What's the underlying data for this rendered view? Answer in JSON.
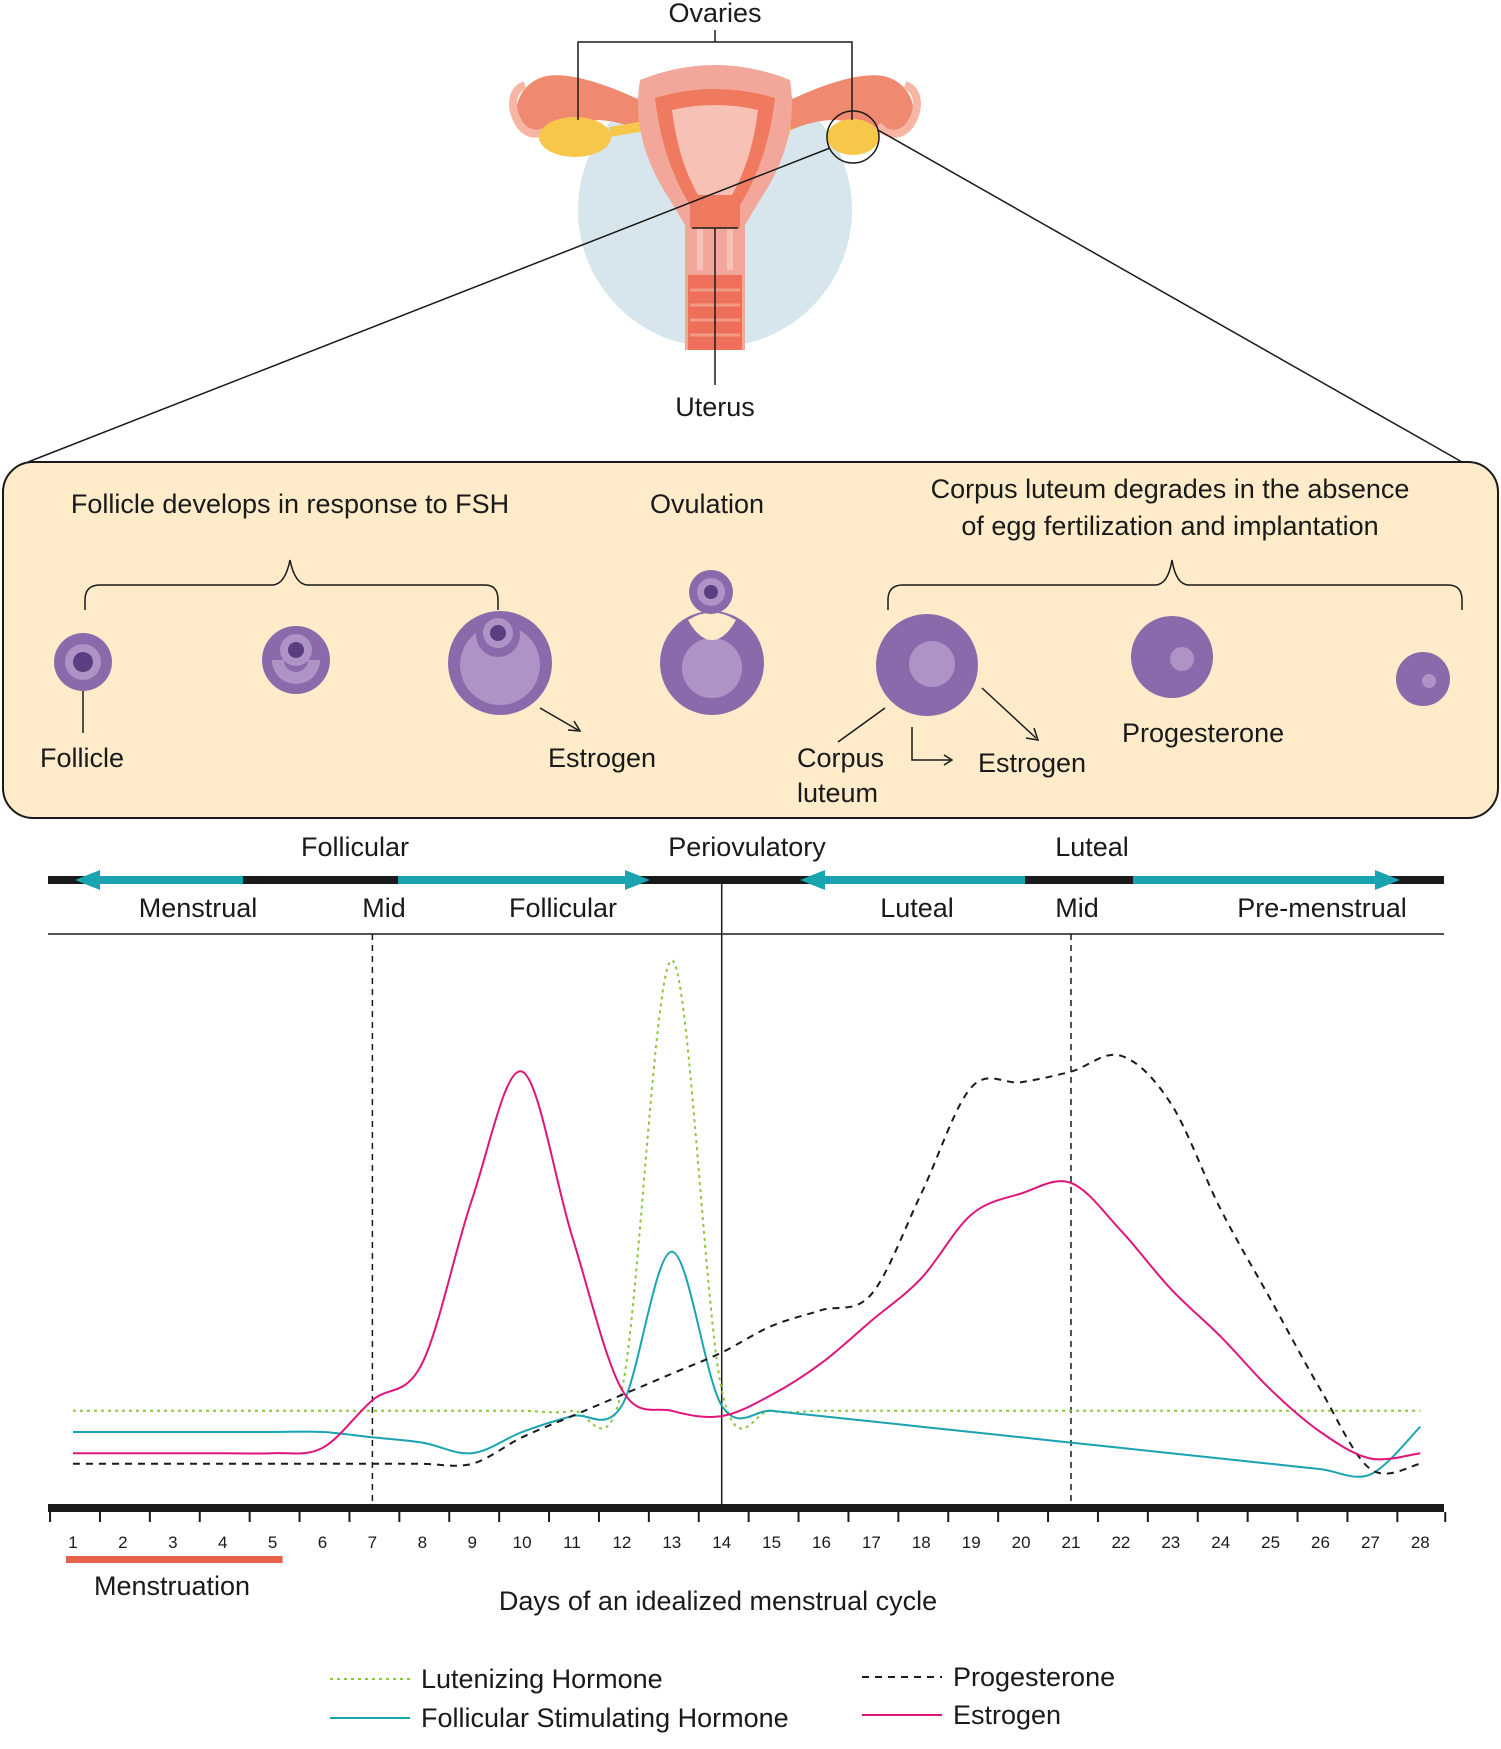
{
  "anatomy": {
    "ovaries_label": "Ovaries",
    "uterus_label": "Uterus"
  },
  "ovary_panel": {
    "follicle_heading": "Follicle develops in response to FSH",
    "ovulation_heading": "Ovulation",
    "corpus_heading_line1": "Corpus luteum degrades in the absence",
    "corpus_heading_line2": "of egg fertilization and implantation",
    "follicle_label": "Follicle",
    "estrogen_label_1": "Estrogen",
    "corpus_label_line1": "Corpus",
    "corpus_label_line2": "luteum",
    "estrogen_label_2": "Estrogen",
    "progesterone_label": "Progesterone"
  },
  "phases": {
    "top": [
      "Follicular",
      "Periovulatory",
      "Luteal"
    ],
    "sub": [
      "Menstrual",
      "Mid",
      "Follicular",
      "Luteal",
      "Mid",
      "Pre-menstrual"
    ]
  },
  "axis": {
    "days": [
      "1",
      "2",
      "3",
      "4",
      "5",
      "6",
      "7",
      "8",
      "9",
      "10",
      "11",
      "12",
      "13",
      "14",
      "15",
      "16",
      "17",
      "18",
      "19",
      "20",
      "21",
      "22",
      "23",
      "24",
      "25",
      "26",
      "27",
      "28"
    ],
    "menstruation_label": "Menstruation",
    "menstruation_days": [
      1,
      5
    ],
    "xlabel": "Days of an idealized menstrual cycle"
  },
  "chart_data": {
    "type": "line",
    "x": [
      1,
      2,
      3,
      4,
      5,
      6,
      7,
      8,
      9,
      10,
      11,
      12,
      13,
      14,
      15,
      16,
      17,
      18,
      19,
      20,
      21,
      22,
      23,
      24,
      25,
      26,
      27,
      28
    ],
    "ylim": [
      0,
      100
    ],
    "markers": {
      "mid_follicular_day": 7,
      "ovulation_day": 14,
      "mid_luteal_day": 21
    },
    "series": [
      {
        "name": "Lutenizing Hormone",
        "color": "#8cc63f",
        "style": "dotted",
        "values": [
          14,
          14,
          14,
          14,
          14,
          14,
          14,
          14,
          14,
          14,
          14,
          18,
          99,
          18,
          14,
          14,
          14,
          14,
          14,
          14,
          14,
          14,
          14,
          14,
          14,
          14,
          14,
          14
        ]
      },
      {
        "name": "Follicular Stimulating Hormone",
        "color": "#1aa3b0",
        "style": "solid",
        "values": [
          10,
          10,
          10,
          10,
          10,
          10,
          9,
          8,
          6,
          10,
          13,
          15,
          44,
          15,
          14,
          13,
          12,
          11,
          10,
          9,
          8,
          7,
          6,
          5,
          4,
          3,
          2,
          11
        ]
      },
      {
        "name": "Progesterone",
        "color": "#1a1a1a",
        "style": "dashed",
        "values": [
          4,
          4,
          4,
          4,
          4,
          4,
          4,
          4,
          4,
          9,
          13,
          17,
          21,
          25,
          30,
          33,
          36,
          55,
          75,
          76,
          78,
          81,
          72,
          52,
          35,
          18,
          3,
          4
        ]
      },
      {
        "name": "Estrogen",
        "color": "#e0157a",
        "style": "solid",
        "values": [
          6,
          6,
          6,
          6,
          6,
          7,
          16,
          23,
          54,
          78,
          47,
          18,
          14,
          13,
          17,
          23,
          31,
          39,
          51,
          55,
          57,
          48,
          37,
          28,
          18,
          10,
          5,
          6
        ]
      }
    ]
  }
}
